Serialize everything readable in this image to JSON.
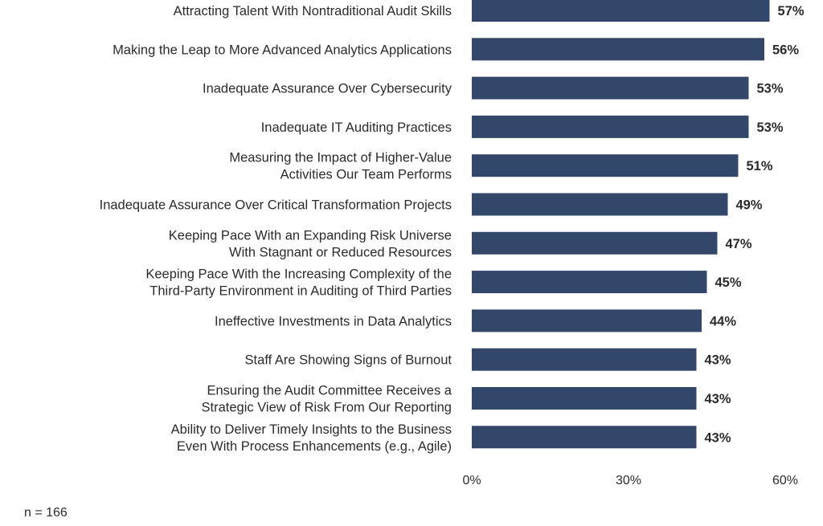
{
  "chart_data": {
    "type": "bar",
    "orientation": "horizontal",
    "categories": [
      [
        "Attracting Talent With Nontraditional Audit Skills"
      ],
      [
        "Making the Leap to More Advanced Analytics Applications"
      ],
      [
        "Inadequate Assurance Over Cybersecurity"
      ],
      [
        "Inadequate IT Auditing Practices"
      ],
      [
        "Measuring the Impact of Higher-Value",
        "Activities Our Team Performs"
      ],
      [
        "Inadequate Assurance Over Critical Transformation Projects"
      ],
      [
        "Keeping Pace With an Expanding Risk Universe",
        "With Stagnant or Reduced Resources"
      ],
      [
        "Keeping Pace With the Increasing Complexity of the",
        "Third-Party Environment in Auditing of Third Parties"
      ],
      [
        "Ineffective Investments in Data Analytics"
      ],
      [
        "Staff Are Showing Signs of Burnout"
      ],
      [
        "Ensuring the Audit Committee Receives a",
        "Strategic View of Risk From Our Reporting"
      ],
      [
        "Ability to Deliver Timely Insights to the Business",
        "Even With Process Enhancements (e.g., Agile)"
      ]
    ],
    "values": [
      57,
      56,
      53,
      53,
      51,
      49,
      47,
      45,
      44,
      43,
      43,
      43
    ],
    "value_labels": [
      "57%",
      "56%",
      "53%",
      "53%",
      "51%",
      "49%",
      "47%",
      "45%",
      "44%",
      "43%",
      "43%",
      "43%"
    ],
    "xlim": [
      0,
      60
    ],
    "x_ticks": [
      0,
      30,
      60
    ],
    "x_tick_labels": [
      "0%",
      "30%",
      "60%"
    ],
    "bar_color": "#33476b",
    "grid": false
  },
  "footnote": "n = 166"
}
